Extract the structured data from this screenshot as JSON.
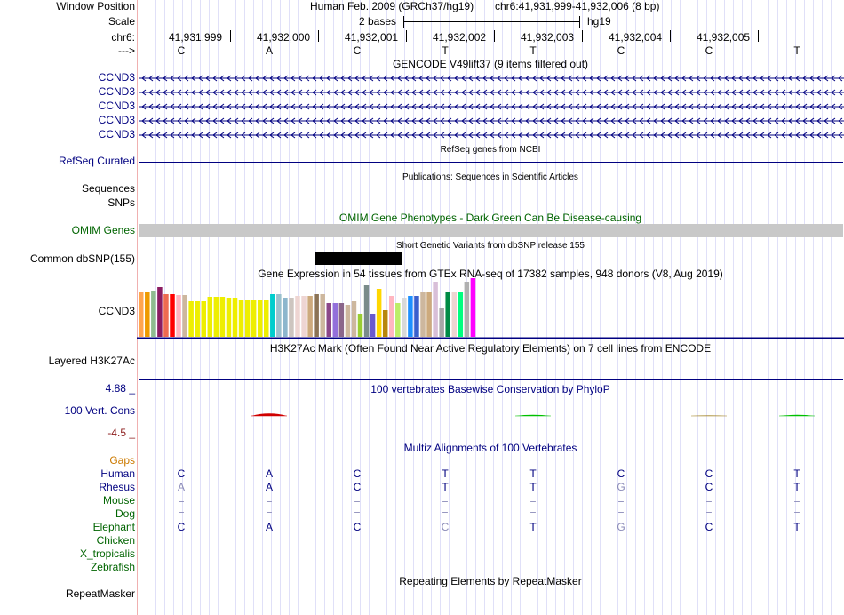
{
  "header": {
    "window_position_label": "Window Position",
    "scale_label": "Scale",
    "chr_label": "chr6:",
    "strand_label": "--->",
    "assembly": "Human Feb. 2009 (GRCh37/hg19)",
    "position": "chr6:41,931,999-41,932,006 (8 bp)",
    "scale_text": "2 bases",
    "db": "hg19",
    "coords": [
      "41,931,999",
      "41,932,000",
      "41,932,001",
      "41,932,002",
      "41,932,003",
      "41,932,004",
      "41,932,005"
    ],
    "bases": [
      "C",
      "A",
      "C",
      "T",
      "T",
      "C",
      "C",
      "T"
    ]
  },
  "gencode": {
    "title": "GENCODE V49lift37 (9 items filtered out)",
    "genes": [
      "CCND3",
      "CCND3",
      "CCND3",
      "CCND3",
      "CCND3"
    ]
  },
  "refseq": {
    "title": "RefSeq genes from NCBI",
    "label": "RefSeq Curated"
  },
  "publications": {
    "title": "Publications: Sequences in Scientific Articles",
    "label1": "Sequences",
    "label2": "SNPs"
  },
  "omim": {
    "title": "OMIM Gene Phenotypes - Dark Green Can Be Disease-causing",
    "label": "OMIM Genes"
  },
  "dbsnp": {
    "title": "Short Genetic Variants from dbSNP release 155",
    "label": "Common dbSNP(155)"
  },
  "gtex": {
    "title": "Gene Expression in 54 tissues from GTEx RNA-seq of 17382 samples, 948 donors (V8, Aug 2019)",
    "label": "CCND3",
    "colors": [
      "#FFA54F",
      "#EE9A00",
      "#8FBC8F",
      "#8B1C62",
      "#EE6A50",
      "#FF0000",
      "#FFB6C1",
      "#CDB79E",
      "#EEEE00",
      "#EEEE00",
      "#EEEE00",
      "#EEEE00",
      "#EEEE00",
      "#EEEE00",
      "#EEEE00",
      "#EEEE00",
      "#EEEE00",
      "#EEEE00",
      "#EEEE00",
      "#EEEE00",
      "#EEEE00",
      "#00CDCD",
      "#9AC0CD",
      "#8DB6CD",
      "#CDC5BF",
      "#EED5D2",
      "#EED5D2",
      "#CDAA7D",
      "#8B7355",
      "#CDB79E",
      "#8B4789",
      "#9370DB",
      "#8B668B",
      "#CDB79E",
      "#CDB79E",
      "#9ACD32",
      "#7A8B8B",
      "#6A5ACD",
      "#FFD700",
      "#B8860B",
      "#FFB6C1",
      "#BCEE68",
      "#D9D9D9",
      "#1E90FF",
      "#3A5FCD",
      "#CDB79E",
      "#CDAA7D",
      "#D8BFD8",
      "#A6A6A6",
      "#008B45",
      "#EED5D2",
      "#00FF7F",
      "#B0B0B0",
      "#FF00FF"
    ],
    "values": [
      50,
      50,
      52,
      56,
      48,
      48,
      47,
      47,
      40,
      40,
      40,
      45,
      45,
      45,
      44,
      44,
      42,
      42,
      42,
      42,
      42,
      48,
      48,
      44,
      44,
      46,
      46,
      46,
      48,
      48,
      38,
      38,
      38,
      36,
      40,
      26,
      58,
      26,
      54,
      30,
      46,
      38,
      44,
      46,
      46,
      50,
      50,
      62,
      32,
      50,
      50,
      50,
      62,
      66
    ]
  },
  "h3k27ac": {
    "title": "H3K27Ac Mark (Often Found Near Active Regulatory Elements) on 7 cell lines from ENCODE",
    "label": "Layered H3K27Ac"
  },
  "cons": {
    "title": "100 vertebrates Basewise Conservation by PhyloP",
    "label": "100 Vert. Cons",
    "max": "4.88 _",
    "min": "-4.5 _",
    "scores": [
      0,
      1.8,
      0,
      0,
      0.8,
      0,
      0.4,
      0.8
    ]
  },
  "multiz": {
    "title": "Multiz Alignments of 100 Vertebrates",
    "gaps_label": "Gaps",
    "species": [
      {
        "name": "Human",
        "color": "#000080",
        "bases": [
          "C",
          "A",
          "C",
          "T",
          "T",
          "C",
          "C",
          "T"
        ]
      },
      {
        "name": "Rhesus",
        "color": "#000080",
        "bases": [
          "A",
          "A",
          "C",
          "T",
          "T",
          "G",
          "C",
          "T"
        ]
      },
      {
        "name": "Mouse",
        "color": "#006400",
        "bases": [
          "=",
          "=",
          "=",
          "=",
          "=",
          "=",
          "=",
          "="
        ]
      },
      {
        "name": "Dog",
        "color": "#006400",
        "bases": [
          "=",
          "=",
          "=",
          "=",
          "=",
          "=",
          "=",
          "="
        ]
      },
      {
        "name": "Elephant",
        "color": "#006400",
        "bases": [
          "C",
          "A",
          "C",
          "C",
          "T",
          "G",
          "C",
          "T"
        ]
      },
      {
        "name": "Chicken",
        "color": "#006400",
        "bases": [
          "",
          "",
          "",
          "",
          "",
          "",
          "",
          ""
        ]
      },
      {
        "name": "X_tropicalis",
        "color": "#006400",
        "bases": [
          "",
          "",
          "",
          "",
          "",
          "",
          "",
          ""
        ]
      },
      {
        "name": "Zebrafish",
        "color": "#006400",
        "bases": [
          "",
          "",
          "",
          "",
          "",
          "",
          "",
          ""
        ]
      }
    ]
  },
  "repeatmasker": {
    "title": "Repeating Elements by RepeatMasker",
    "label": "RepeatMasker"
  },
  "colors": {
    "navy": "#000080",
    "dark_green": "#006400",
    "orange": "#CC7A00",
    "dark_red": "#8B1A1A",
    "omim_gray": "#C8C8C8"
  }
}
